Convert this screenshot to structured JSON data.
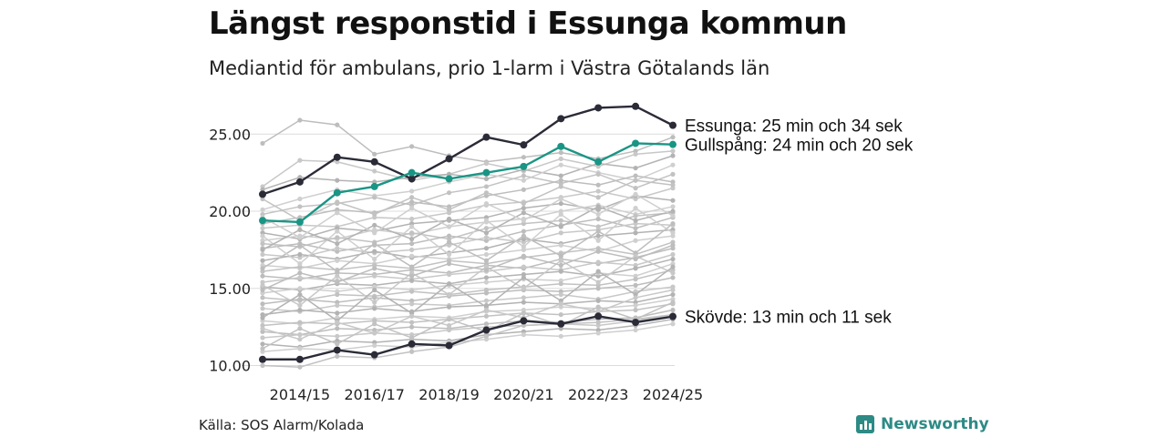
{
  "title": "Längst responstid i Essunga kommun",
  "subtitle": "Mediantid för ambulans, prio 1-larm i Västra Götalands län",
  "source": "Källa: SOS Alarm/Kolada",
  "brand": {
    "name": "Newsworthy",
    "color": "#2d8a85"
  },
  "chart_data": {
    "type": "line",
    "title": "Längst responstid i Essunga kommun",
    "subtitle": "Mediantid för ambulans, prio 1-larm i Västra Götalands län",
    "x": [
      "2013/14",
      "2014/15",
      "2015/16",
      "2016/17",
      "2017/18",
      "2018/19",
      "2019/20",
      "2020/21",
      "2021/22",
      "2022/23",
      "2023/24",
      "2024/25"
    ],
    "x_ticks": [
      "2014/15",
      "2016/17",
      "2018/19",
      "2020/21",
      "2022/23",
      "2024/25"
    ],
    "ylim": [
      9.5,
      27.2
    ],
    "y_ticks": [
      "10.00",
      "15.00",
      "20.00",
      "25.00"
    ],
    "y_tick_values": [
      10,
      15,
      20,
      25
    ],
    "grid": true,
    "highlight_series": [
      {
        "name": "Essunga",
        "color": "#2b2b38",
        "label": "Essunga: 25 min och 34 sek",
        "values": [
          21.1,
          21.9,
          23.5,
          23.2,
          22.1,
          23.4,
          24.8,
          24.3,
          26.0,
          26.7,
          26.8,
          25.57
        ]
      },
      {
        "name": "Gullspång",
        "color": "#1a9585",
        "label": "Gullspång: 24 min och 20 sek",
        "values": [
          19.4,
          19.3,
          21.2,
          21.6,
          22.5,
          22.1,
          22.5,
          22.9,
          24.2,
          23.2,
          24.4,
          24.33
        ]
      },
      {
        "name": "Skövde",
        "color": "#2b2b38",
        "label": "Skövde: 13 min och 11 sek",
        "values": [
          10.4,
          10.4,
          11.0,
          10.7,
          11.4,
          11.3,
          12.3,
          12.9,
          12.7,
          13.2,
          12.8,
          13.18
        ]
      }
    ],
    "background_series": [
      {
        "values": [
          24.4,
          25.9,
          25.6,
          23.7,
          24.2,
          23.6,
          23.2,
          23.5,
          23.8,
          23.4,
          23.9,
          24.8
        ]
      },
      {
        "values": [
          21.6,
          23.3,
          23.2,
          22.6,
          22.0,
          22.4,
          23.1,
          22.6,
          23.4,
          22.9,
          23.7,
          23.9
        ]
      },
      {
        "values": [
          21.4,
          22.2,
          22.0,
          21.9,
          22.2,
          22.4,
          22.1,
          22.7,
          22.3,
          23.1,
          22.8,
          23.6
        ]
      },
      {
        "values": [
          20.1,
          20.8,
          21.4,
          21.0,
          21.3,
          21.9,
          22.4,
          22.0,
          23.0,
          22.5,
          22.0,
          23.0
        ]
      },
      {
        "values": [
          19.8,
          20.3,
          20.5,
          20.9,
          20.4,
          21.2,
          21.6,
          22.3,
          21.8,
          22.4,
          21.5,
          22.4
        ]
      },
      {
        "values": [
          19.2,
          19.6,
          20.1,
          19.9,
          20.6,
          20.3,
          21.0,
          21.4,
          22.0,
          21.7,
          22.3,
          21.9
        ]
      },
      {
        "values": [
          18.9,
          19.1,
          19.0,
          19.6,
          19.5,
          19.9,
          20.4,
          20.6,
          20.9,
          21.3,
          20.8,
          21.5
        ]
      },
      {
        "values": [
          18.6,
          18.2,
          18.9,
          18.7,
          19.2,
          19.4,
          19.6,
          20.2,
          20.5,
          20.1,
          21.0,
          20.7
        ]
      },
      {
        "values": [
          18.1,
          18.4,
          18.2,
          18.8,
          18.5,
          19.0,
          19.3,
          19.5,
          20.0,
          20.4,
          19.8,
          20.3
        ]
      },
      {
        "values": [
          17.9,
          17.7,
          18.3,
          18.0,
          18.6,
          18.2,
          18.9,
          19.2,
          19.4,
          19.0,
          19.7,
          19.9
        ]
      },
      {
        "values": [
          17.6,
          17.9,
          17.4,
          17.8,
          17.9,
          18.4,
          18.1,
          18.7,
          19.1,
          19.5,
          18.9,
          19.6
        ]
      },
      {
        "values": [
          17.2,
          17.0,
          17.6,
          17.3,
          17.5,
          17.8,
          18.3,
          18.0,
          18.6,
          18.8,
          19.2,
          19.1
        ]
      },
      {
        "values": [
          16.8,
          17.2,
          16.9,
          17.4,
          17.0,
          17.3,
          17.6,
          18.2,
          17.9,
          18.4,
          18.6,
          18.8
        ]
      },
      {
        "values": [
          16.5,
          16.3,
          16.8,
          16.6,
          17.1,
          16.9,
          17.2,
          17.5,
          17.8,
          17.4,
          18.1,
          18.4
        ]
      },
      {
        "values": [
          16.1,
          16.4,
          16.2,
          16.5,
          16.3,
          16.8,
          16.6,
          17.0,
          17.3,
          17.6,
          17.2,
          18.0
        ]
      },
      {
        "values": [
          15.8,
          15.6,
          16.0,
          15.9,
          16.2,
          16.0,
          16.5,
          16.3,
          16.9,
          16.6,
          17.0,
          17.6
        ]
      },
      {
        "values": [
          15.4,
          15.7,
          15.5,
          15.8,
          15.6,
          15.9,
          16.1,
          16.4,
          16.2,
          16.7,
          16.5,
          17.2
        ]
      },
      {
        "values": [
          15.1,
          14.9,
          15.3,
          15.2,
          15.5,
          15.3,
          15.7,
          15.9,
          16.1,
          15.8,
          16.3,
          16.9
        ]
      },
      {
        "values": [
          14.7,
          15.0,
          14.8,
          15.1,
          14.9,
          15.2,
          15.4,
          15.6,
          15.5,
          16.0,
          15.8,
          16.6
        ]
      },
      {
        "values": [
          14.4,
          14.2,
          14.6,
          14.5,
          14.8,
          14.6,
          14.9,
          15.1,
          15.3,
          15.2,
          15.6,
          16.2
        ]
      },
      {
        "values": [
          14.0,
          14.3,
          14.1,
          14.4,
          14.2,
          14.5,
          14.7,
          14.9,
          14.8,
          15.0,
          15.2,
          15.7
        ]
      },
      {
        "values": [
          13.7,
          13.5,
          13.9,
          13.8,
          14.0,
          13.9,
          14.2,
          14.4,
          14.6,
          14.3,
          14.8,
          15.1
        ]
      },
      {
        "values": [
          13.3,
          13.6,
          13.4,
          13.7,
          13.5,
          13.8,
          13.9,
          14.1,
          14.0,
          14.2,
          14.1,
          14.6
        ]
      },
      {
        "values": [
          12.9,
          12.7,
          13.1,
          13.0,
          13.2,
          13.1,
          13.5,
          13.6,
          13.8,
          13.7,
          13.9,
          14.3
        ]
      },
      {
        "values": [
          12.6,
          12.8,
          12.7,
          12.9,
          12.8,
          13.0,
          13.2,
          13.4,
          13.3,
          13.5,
          13.6,
          14.0
        ]
      },
      {
        "values": [
          12.2,
          12.0,
          12.4,
          12.3,
          12.5,
          12.4,
          12.7,
          12.9,
          12.8,
          13.0,
          13.1,
          13.6
        ]
      },
      {
        "values": [
          11.8,
          12.0,
          11.9,
          12.1,
          12.0,
          12.3,
          12.5,
          12.6,
          12.7,
          12.6,
          12.9,
          13.3
        ]
      },
      {
        "values": [
          11.4,
          11.2,
          11.6,
          11.5,
          11.7,
          11.6,
          12.0,
          12.2,
          12.4,
          12.3,
          12.6,
          13.0
        ]
      },
      {
        "values": [
          10.9,
          11.1,
          11.0,
          11.3,
          11.2,
          11.5,
          11.7,
          12.0,
          11.9,
          12.1,
          12.3,
          12.7
        ]
      },
      {
        "values": [
          10.0,
          9.9,
          10.6,
          10.5,
          10.9,
          11.2,
          11.9,
          12.6,
          12.7,
          12.8,
          13.0,
          13.3
        ]
      },
      {
        "values": [
          16.3,
          17.8,
          16.1,
          17.9,
          16.4,
          18.0,
          16.8,
          18.4,
          17.1,
          18.7,
          17.3,
          19.2
        ]
      },
      {
        "values": [
          15.2,
          13.9,
          15.8,
          14.1,
          16.0,
          14.6,
          16.4,
          15.0,
          16.8,
          15.4,
          17.1,
          16.0
        ]
      },
      {
        "values": [
          13.1,
          14.6,
          12.9,
          14.9,
          13.4,
          15.3,
          13.8,
          15.7,
          14.2,
          16.1,
          14.6,
          16.4
        ]
      },
      {
        "values": [
          18.4,
          16.6,
          18.7,
          16.9,
          19.0,
          17.2,
          19.4,
          17.7,
          19.8,
          18.1,
          20.2,
          18.6
        ]
      },
      {
        "values": [
          20.8,
          19.4,
          20.6,
          19.8,
          20.9,
          20.1,
          21.2,
          20.5,
          21.6,
          20.9,
          22.0,
          21.7
        ]
      },
      {
        "values": [
          14.9,
          16.0,
          15.4,
          16.3,
          15.8,
          16.6,
          16.2,
          17.1,
          16.5,
          17.4,
          16.9,
          17.8
        ]
      },
      {
        "values": [
          12.4,
          11.7,
          12.8,
          12.1,
          13.2,
          12.6,
          13.6,
          13.1,
          14.0,
          13.5,
          14.4,
          14.9
        ]
      },
      {
        "values": [
          17.5,
          18.8,
          17.9,
          19.1,
          18.2,
          19.5,
          18.6,
          19.9,
          19.0,
          20.3,
          19.4,
          20.0
        ]
      },
      {
        "values": [
          19.6,
          18.3,
          19.9,
          18.6,
          20.2,
          19.0,
          20.5,
          19.4,
          20.8,
          19.8,
          21.1,
          19.7
        ]
      },
      {
        "values": [
          11.1,
          12.4,
          11.4,
          12.7,
          11.8,
          13.0,
          12.2,
          13.4,
          12.6,
          13.8,
          13.0,
          14.1
        ]
      }
    ]
  }
}
